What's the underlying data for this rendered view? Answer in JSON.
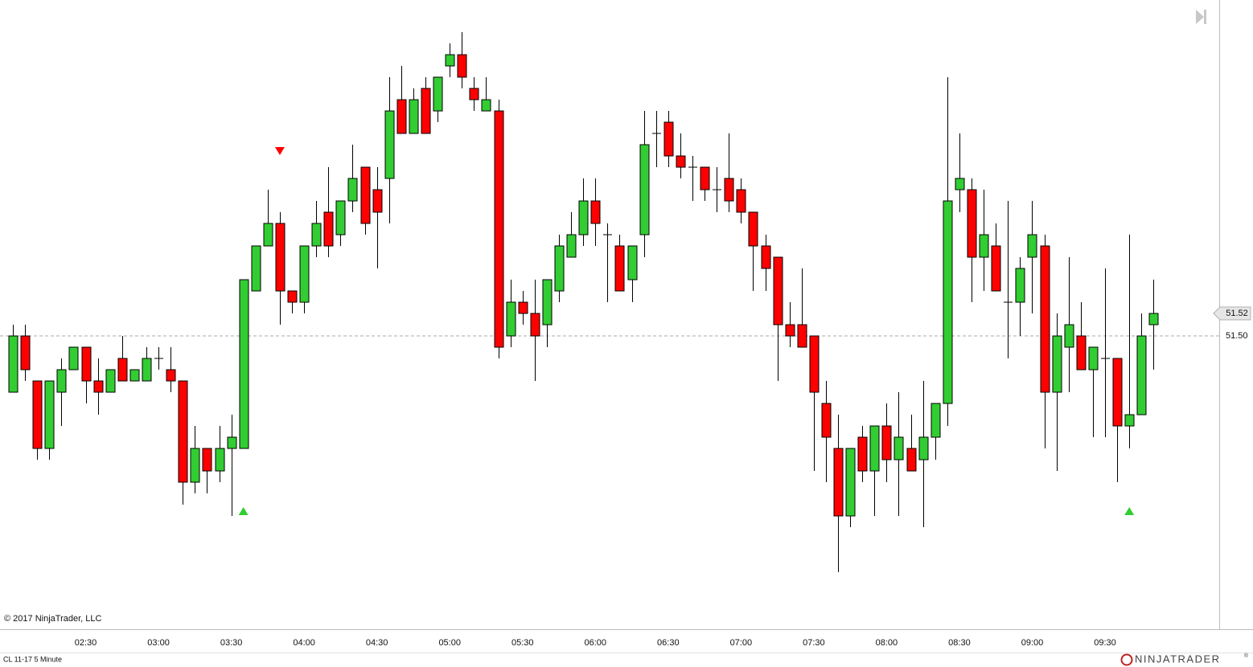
{
  "chart_data": {
    "type": "candlestick",
    "instrument_label": "CL 11-17 5 Minute",
    "copyright": "© 2017 NinjaTrader, LLC",
    "brand": "NINJATRADER",
    "brand_mark": "®",
    "up_color": "#32cd32",
    "down_color": "#ff0000",
    "wick_color": "#000000",
    "categories": [
      null,
      null,
      null,
      null,
      null,
      null,
      "02:30",
      null,
      null,
      null,
      null,
      null,
      "03:00",
      null,
      null,
      null,
      null,
      null,
      "03:30",
      null,
      null,
      null,
      null,
      null,
      "04:00",
      null,
      null,
      null,
      null,
      null,
      "04:30",
      null,
      null,
      null,
      null,
      null,
      "05:00",
      null,
      null,
      null,
      null,
      null,
      "05:30",
      null,
      null,
      null,
      null,
      null,
      "06:00",
      null,
      null,
      null,
      null,
      null,
      "06:30",
      null,
      null,
      null,
      null,
      null,
      "07:00",
      null,
      null,
      null,
      null,
      null,
      "07:30",
      null,
      null,
      null,
      null,
      null,
      "08:00",
      null,
      null,
      null,
      null,
      null,
      "08:30",
      null,
      null,
      null,
      null,
      null,
      "09:00",
      null,
      null,
      null,
      null,
      null,
      "09:30",
      null,
      null,
      null,
      null
    ],
    "open": [
      51.45,
      51.5,
      51.46,
      51.4,
      51.45,
      51.47,
      51.49,
      51.46,
      51.45,
      51.48,
      51.46,
      51.46,
      51.48,
      51.47,
      51.46,
      51.37,
      51.4,
      51.38,
      51.4,
      51.4,
      51.54,
      51.58,
      51.6,
      51.54,
      51.53,
      51.58,
      51.61,
      51.59,
      51.62,
      51.65,
      51.63,
      51.64,
      51.71,
      51.68,
      51.72,
      51.7,
      51.74,
      51.75,
      51.72,
      51.7,
      51.7,
      51.5,
      51.53,
      51.52,
      51.51,
      51.54,
      51.57,
      51.59,
      51.62,
      51.59,
      51.58,
      51.55,
      51.59,
      51.68,
      51.69,
      51.66,
      51.65,
      51.65,
      51.63,
      51.64,
      51.63,
      51.61,
      51.58,
      51.57,
      51.51,
      51.51,
      51.5,
      51.44,
      51.4,
      51.34,
      51.41,
      51.38,
      51.42,
      51.39,
      51.4,
      51.39,
      51.41,
      51.44,
      51.63,
      51.63,
      51.57,
      51.58,
      51.53,
      51.53,
      51.57,
      51.58,
      51.45,
      51.49,
      51.5,
      51.47,
      51.48,
      51.48,
      51.42,
      51.43,
      51.51
    ],
    "high": [
      51.51,
      51.51,
      51.46,
      51.46,
      51.48,
      51.49,
      51.49,
      51.48,
      51.47,
      51.5,
      51.47,
      51.49,
      51.49,
      51.49,
      51.46,
      51.42,
      51.4,
      51.42,
      51.43,
      51.55,
      51.58,
      51.63,
      51.61,
      51.54,
      51.58,
      51.62,
      51.65,
      51.62,
      51.67,
      51.65,
      51.65,
      51.73,
      51.74,
      51.72,
      51.73,
      51.73,
      51.76,
      51.77,
      51.73,
      51.73,
      51.71,
      51.55,
      51.54,
      51.55,
      51.55,
      51.59,
      51.61,
      51.64,
      51.64,
      51.6,
      51.59,
      51.58,
      51.7,
      51.7,
      51.7,
      51.68,
      51.66,
      51.65,
      51.65,
      51.68,
      51.64,
      51.61,
      51.59,
      51.57,
      51.53,
      51.56,
      51.5,
      51.46,
      51.43,
      51.4,
      51.42,
      51.42,
      51.44,
      51.45,
      51.43,
      51.46,
      51.44,
      51.73,
      51.68,
      51.64,
      51.63,
      51.6,
      51.62,
      51.57,
      51.62,
      51.59,
      51.52,
      51.57,
      51.53,
      51.49,
      51.56,
      51.48,
      51.59,
      51.52,
      51.55
    ],
    "low": [
      51.45,
      51.46,
      51.39,
      51.39,
      51.42,
      51.47,
      51.44,
      51.43,
      51.45,
      51.46,
      51.46,
      51.46,
      51.47,
      51.45,
      51.35,
      51.36,
      51.36,
      51.37,
      51.34,
      51.4,
      51.54,
      51.58,
      51.51,
      51.52,
      51.52,
      51.57,
      51.57,
      51.58,
      51.61,
      51.59,
      51.56,
      51.6,
      51.68,
      51.68,
      51.68,
      51.69,
      51.73,
      51.72,
      51.7,
      51.7,
      51.48,
      51.49,
      51.51,
      51.46,
      51.49,
      51.53,
      51.57,
      51.58,
      51.58,
      51.53,
      51.54,
      51.53,
      51.57,
      51.65,
      51.65,
      51.64,
      51.62,
      51.62,
      51.61,
      51.61,
      51.6,
      51.54,
      51.54,
      51.46,
      51.49,
      51.49,
      51.38,
      51.37,
      51.29,
      51.33,
      51.37,
      51.34,
      51.37,
      51.34,
      51.38,
      51.33,
      51.39,
      51.42,
      51.61,
      51.53,
      51.54,
      51.54,
      51.48,
      51.5,
      51.52,
      51.4,
      51.38,
      51.45,
      51.47,
      51.41,
      51.41,
      51.37,
      51.4,
      51.43,
      51.47
    ],
    "close": [
      51.5,
      51.47,
      51.4,
      51.46,
      51.47,
      51.49,
      51.46,
      51.45,
      51.47,
      51.46,
      51.47,
      51.48,
      51.48,
      51.46,
      51.37,
      51.4,
      51.38,
      51.4,
      51.41,
      51.55,
      51.58,
      51.6,
      51.54,
      51.53,
      51.58,
      51.6,
      51.58,
      51.62,
      51.64,
      51.6,
      51.61,
      51.7,
      51.68,
      51.71,
      51.68,
      51.73,
      51.75,
      51.73,
      51.71,
      51.71,
      51.49,
      51.53,
      51.52,
      51.5,
      51.55,
      51.58,
      51.59,
      51.62,
      51.6,
      51.59,
      51.54,
      51.58,
      51.67,
      51.68,
      51.66,
      51.65,
      51.65,
      51.63,
      51.63,
      51.62,
      51.61,
      51.58,
      51.56,
      51.51,
      51.5,
      51.49,
      51.45,
      51.41,
      51.34,
      51.4,
      51.38,
      51.42,
      51.39,
      51.41,
      51.38,
      51.41,
      51.44,
      51.62,
      51.64,
      51.57,
      51.59,
      51.54,
      51.53,
      51.56,
      51.59,
      51.45,
      51.5,
      51.51,
      51.47,
      51.49,
      51.48,
      51.42,
      51.43,
      51.5,
      51.52
    ],
    "signals": [
      {
        "bar": 19,
        "direction": "up"
      },
      {
        "bar": 22,
        "direction": "down"
      },
      {
        "bar": 92,
        "direction": "up"
      }
    ],
    "ylim": [
      51.2393,
      51.7986
    ],
    "yticks": [
      {
        "value": 51.5,
        "label": "51.50"
      }
    ],
    "last_price": {
      "value": 51.52,
      "label": "51.52"
    },
    "grid": true
  }
}
